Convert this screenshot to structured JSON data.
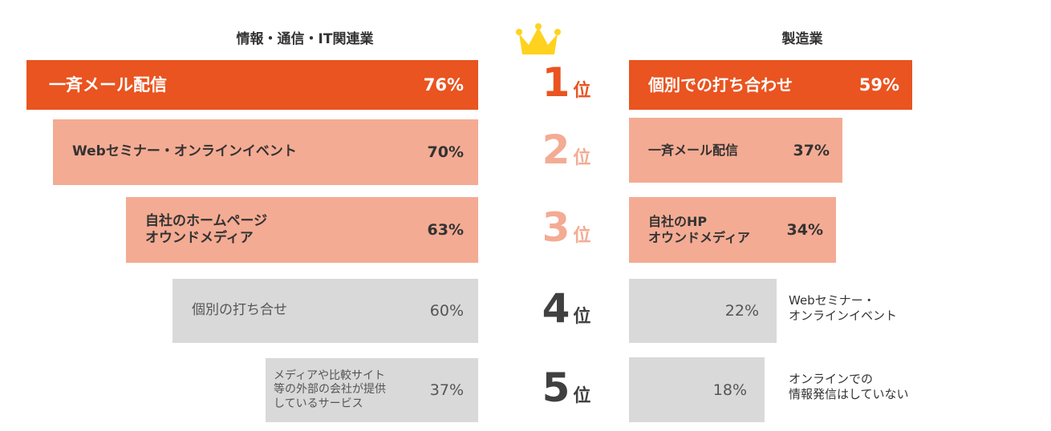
{
  "left": {
    "title": "情報・通信・IT関連業",
    "items": [
      {
        "label": [
          "一斉メール配信"
        ],
        "value": "76%"
      },
      {
        "label": [
          "Webセミナー・オンラインイベント"
        ],
        "value": "70%"
      },
      {
        "label": [
          "自社のホームページ",
          "オウンドメディア"
        ],
        "value": "63%"
      },
      {
        "label": [
          "個別の打ち合せ"
        ],
        "value": "60%"
      },
      {
        "label": [
          "メディアや比較サイト",
          "等の外部の会社が提供",
          "しているサービス"
        ],
        "value": "37%"
      }
    ]
  },
  "right": {
    "title": "製造業",
    "items": [
      {
        "label": [
          "個別での打ち合わせ"
        ],
        "value": "59%"
      },
      {
        "label": [
          "一斉メール配信"
        ],
        "value": "37%"
      },
      {
        "label": [
          "自社のHP",
          "オウンドメディア"
        ],
        "value": "34%"
      },
      {
        "label": [
          "Webセミナー・",
          "オンラインイベント"
        ],
        "value": "22%"
      },
      {
        "label": [
          "オンラインでの",
          "情報発信はしていない"
        ],
        "value": "18%"
      }
    ]
  },
  "ranks": [
    {
      "number": "1",
      "suffix": "位"
    },
    {
      "number": "2",
      "suffix": "位"
    },
    {
      "number": "3",
      "suffix": "位"
    },
    {
      "number": "4",
      "suffix": "位"
    },
    {
      "number": "5",
      "suffix": "位"
    }
  ]
}
